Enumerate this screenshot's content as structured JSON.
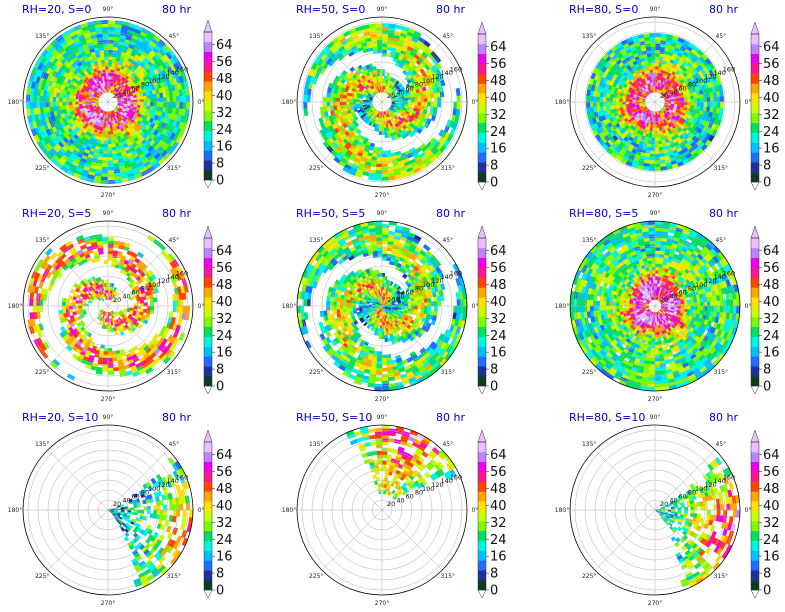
{
  "figure": {
    "time_label": "80 hr"
  },
  "chart_data": {
    "type": "heatmap",
    "projection": "polar",
    "grid": true,
    "angle_ticks": [
      "0°",
      "45°",
      "90°",
      "135°",
      "180°",
      "225°",
      "270°",
      "315°"
    ],
    "radial_ticks": [
      "20",
      "40",
      "60",
      "80",
      "100",
      "120",
      "140",
      "160"
    ],
    "colorbar": {
      "ticks": [
        "0",
        "8",
        "16",
        "24",
        "32",
        "40",
        "48",
        "56",
        "64"
      ],
      "range": [
        0,
        70
      ],
      "extend": "both",
      "colors": [
        "#0b3d1f",
        "#1f2fa0",
        "#1f6dff",
        "#00bfff",
        "#00f5e0",
        "#00e060",
        "#7cfc00",
        "#c8ff00",
        "#ffe000",
        "#ffa500",
        "#ff4500",
        "#ff1493",
        "#ee00ee",
        "#c080ff",
        "#e8c0ff"
      ]
    },
    "panels": [
      {
        "title": "RH=20, S=0",
        "rh": 20,
        "shear": 0,
        "time": "80 hr",
        "pattern": "ring",
        "intensity": 0.9,
        "eye_radius": 0.13,
        "outer_radius": 0.98,
        "coverage": 0.95
      },
      {
        "title": "RH=50, S=0",
        "rh": 50,
        "shear": 0,
        "time": "80 hr",
        "pattern": "spiral",
        "intensity": 0.85,
        "eye_radius": 0.12,
        "outer_radius": 0.93,
        "coverage": 0.85
      },
      {
        "title": "RH=80, S=0",
        "rh": 80,
        "shear": 0,
        "time": "80 hr",
        "pattern": "ring",
        "intensity": 0.85,
        "eye_radius": 0.12,
        "outer_radius": 0.82,
        "coverage": 0.95
      },
      {
        "title": "RH=20, S=5",
        "rh": 20,
        "shear": 5,
        "time": "80 hr",
        "pattern": "bands",
        "intensity": 0.8,
        "eye_radius": 0.06,
        "outer_radius": 0.96,
        "coverage": 0.65
      },
      {
        "title": "RH=50, S=5",
        "rh": 50,
        "shear": 5,
        "time": "80 hr",
        "pattern": "spiral",
        "intensity": 0.8,
        "eye_radius": 0.0,
        "outer_radius": 1.0,
        "coverage": 0.8
      },
      {
        "title": "RH=80, S=5",
        "rh": 80,
        "shear": 5,
        "time": "80 hr",
        "pattern": "ring",
        "intensity": 0.95,
        "eye_radius": 0.08,
        "outer_radius": 1.0,
        "coverage": 0.85
      },
      {
        "title": "RH=20, S=10",
        "rh": 20,
        "shear": 10,
        "time": "80 hr",
        "pattern": "east",
        "intensity": 0.7,
        "eye_radius": 0.0,
        "outer_radius": 1.0,
        "coverage": 0.45
      },
      {
        "title": "RH=50, S=10",
        "rh": 50,
        "shear": 10,
        "time": "80 hr",
        "pattern": "north",
        "intensity": 0.85,
        "eye_radius": 0.0,
        "outer_radius": 1.0,
        "coverage": 0.5
      },
      {
        "title": "RH=80, S=10",
        "rh": 80,
        "shear": 10,
        "time": "80 hr",
        "pattern": "east",
        "intensity": 0.9,
        "eye_radius": 0.0,
        "outer_radius": 1.0,
        "coverage": 0.5
      }
    ]
  }
}
